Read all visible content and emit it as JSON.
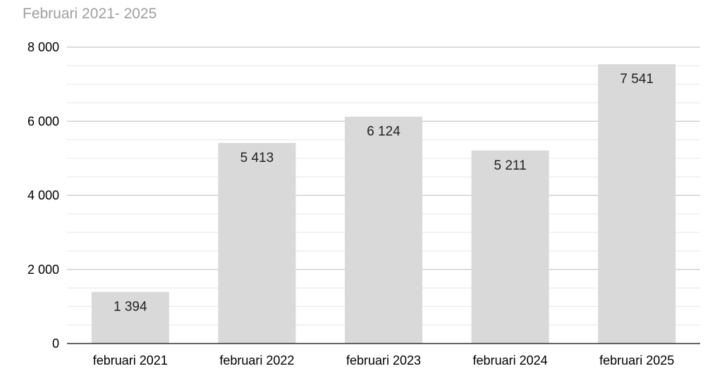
{
  "chart_data": {
    "type": "bar",
    "title": "Februari 2021- 2025",
    "categories": [
      "februari 2021",
      "februari 2022",
      "februari 2023",
      "februari 2024",
      "februari 2025"
    ],
    "values": [
      1394,
      5413,
      6124,
      5211,
      7541
    ],
    "value_labels": [
      "1 394",
      "5 413",
      "6 124",
      "5 211",
      "7 541"
    ],
    "ylim": [
      0,
      8000
    ],
    "yticks": [
      0,
      2000,
      4000,
      6000,
      8000
    ],
    "ytick_labels": [
      "0",
      "2 000",
      "4 000",
      "6 000",
      "8 000"
    ],
    "minor_step": 500,
    "grid": true,
    "legend": "none",
    "colors": {
      "bar": "#d9d9d9",
      "major_grid": "#c8c8c8",
      "minor_grid": "#e6e6e6",
      "axis": "#333333",
      "title": "#9e9e9e"
    }
  }
}
